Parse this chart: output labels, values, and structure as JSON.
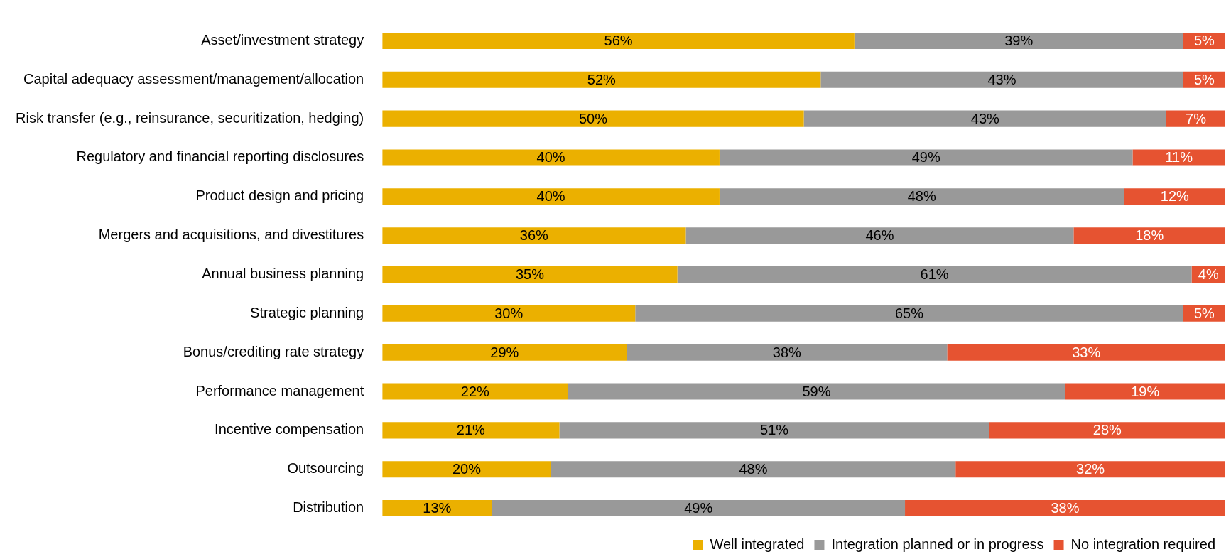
{
  "chart_data": {
    "type": "bar",
    "orientation": "horizontal",
    "stacked": true,
    "legend": "bottom right",
    "categories": [
      "Asset/investment strategy",
      "Capital adequacy assessment/management/allocation",
      "Risk transfer (e.g., reinsurance, securitization, hedging)",
      "Regulatory and financial reporting disclosures",
      "Product design and pricing",
      "Mergers and acquisitions, and divestitures",
      "Annual business planning",
      "Strategic planning",
      "Bonus/crediting rate strategy",
      "Performance management",
      "Incentive compensation",
      "Outsourcing",
      "Distribution"
    ],
    "series": [
      {
        "name": "Well integrated",
        "color": "#ebb000",
        "values": [
          56,
          52,
          50,
          40,
          40,
          36,
          35,
          30,
          29,
          22,
          21,
          20,
          13
        ],
        "value_labels": [
          "56%",
          "52%",
          "50%",
          "40%",
          "40%",
          "36%",
          "35%",
          "30%",
          "29%",
          "22%",
          "21%",
          "20%",
          "13%"
        ]
      },
      {
        "name": "Integration planned or in progress",
        "color": "#999999",
        "values": [
          39,
          43,
          43,
          49,
          48,
          46,
          61,
          65,
          38,
          59,
          51,
          48,
          49
        ],
        "value_labels": [
          "39%",
          "43%",
          "43%",
          "49%",
          "48%",
          "46%",
          "61%",
          "65%",
          "38%",
          "59%",
          "51%",
          "48%",
          "49%"
        ]
      },
      {
        "name": "No integration required",
        "color": "#e65331",
        "values": [
          5,
          5,
          7,
          11,
          12,
          18,
          4,
          5,
          33,
          19,
          28,
          32,
          38
        ],
        "value_labels": [
          "5%",
          "5%",
          "7%",
          "11%",
          "12%",
          "18%",
          "4%",
          "5%",
          "33%",
          "19%",
          "28%",
          "32%",
          "38%"
        ]
      }
    ]
  }
}
